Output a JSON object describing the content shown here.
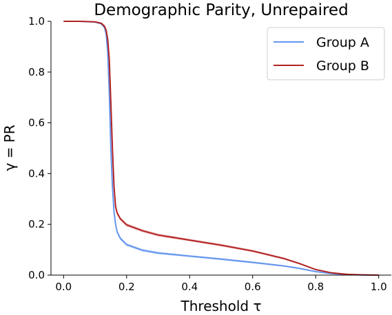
{
  "chart_data": {
    "type": "line",
    "title": "Demographic Parity, Unrepaired",
    "xlabel": "Threshold τ",
    "ylabel": "γ = PR",
    "xlim": [
      -0.04,
      1.04
    ],
    "ylim": [
      0,
      1
    ],
    "x_ticks": [
      0.0,
      0.2,
      0.4,
      0.6,
      0.8,
      1.0
    ],
    "x_tick_labels": [
      "0.0",
      "0.2",
      "0.4",
      "0.6",
      "0.8",
      "1.0"
    ],
    "y_ticks": [
      0.0,
      0.2,
      0.4,
      0.6,
      0.8,
      1.0
    ],
    "y_tick_labels": [
      "0.0",
      "0.2",
      "0.4",
      "0.6",
      "0.8",
      "1.0"
    ],
    "grid": false,
    "legend_position": "top-right",
    "series": [
      {
        "name": "Group A",
        "color": "#6495ed",
        "band_color": "#a9c4f5",
        "x": [
          0.0,
          0.05,
          0.1,
          0.12,
          0.13,
          0.135,
          0.14,
          0.145,
          0.15,
          0.155,
          0.16,
          0.165,
          0.17,
          0.18,
          0.2,
          0.25,
          0.3,
          0.4,
          0.5,
          0.6,
          0.7,
          0.75,
          0.8,
          0.85,
          0.9,
          0.95,
          1.0
        ],
        "y": [
          1.0,
          1.0,
          0.997,
          0.99,
          0.975,
          0.95,
          0.88,
          0.72,
          0.5,
          0.35,
          0.25,
          0.2,
          0.17,
          0.145,
          0.12,
          0.098,
          0.087,
          0.075,
          0.063,
          0.05,
          0.036,
          0.026,
          0.014,
          0.006,
          0.002,
          0.0005,
          0.0
        ],
        "band": [
          0.0,
          0.0,
          0.002,
          0.004,
          0.006,
          0.008,
          0.01,
          0.01,
          0.01,
          0.008,
          0.007,
          0.006,
          0.006,
          0.006,
          0.006,
          0.005,
          0.005,
          0.004,
          0.004,
          0.004,
          0.003,
          0.003,
          0.002,
          0.001,
          0.001,
          0.0,
          0.0
        ]
      },
      {
        "name": "Group B",
        "color": "#b22222",
        "band_color": "#e8a3a3",
        "x": [
          0.0,
          0.05,
          0.1,
          0.12,
          0.13,
          0.135,
          0.14,
          0.145,
          0.15,
          0.155,
          0.16,
          0.165,
          0.17,
          0.18,
          0.2,
          0.25,
          0.3,
          0.4,
          0.5,
          0.6,
          0.7,
          0.75,
          0.8,
          0.85,
          0.9,
          0.95,
          1.0
        ],
        "y": [
          1.0,
          1.0,
          0.998,
          0.992,
          0.98,
          0.965,
          0.93,
          0.85,
          0.68,
          0.5,
          0.35,
          0.27,
          0.245,
          0.222,
          0.198,
          0.175,
          0.158,
          0.138,
          0.118,
          0.095,
          0.065,
          0.045,
          0.022,
          0.009,
          0.003,
          0.001,
          0.0
        ],
        "band": [
          0.0,
          0.0,
          0.002,
          0.004,
          0.006,
          0.008,
          0.01,
          0.012,
          0.012,
          0.01,
          0.009,
          0.008,
          0.008,
          0.007,
          0.007,
          0.006,
          0.006,
          0.005,
          0.005,
          0.005,
          0.004,
          0.003,
          0.002,
          0.001,
          0.001,
          0.0,
          0.0
        ]
      }
    ]
  }
}
